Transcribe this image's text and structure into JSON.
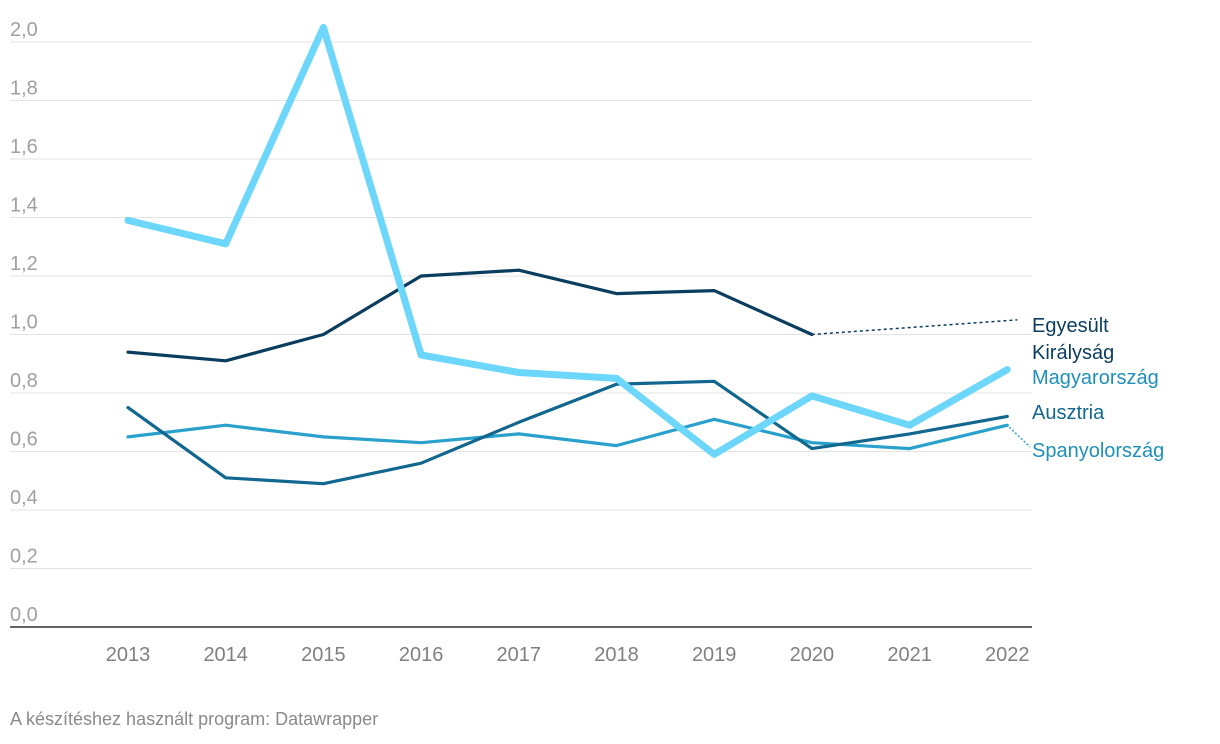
{
  "chart_data": {
    "type": "line",
    "ylim": [
      0,
      2.0
    ],
    "y_ticks": [
      "0,0",
      "0,2",
      "0,4",
      "0,6",
      "0,8",
      "1,0",
      "1,2",
      "1,4",
      "1,6",
      "1,8",
      "2,0"
    ],
    "y_tick_values": [
      0,
      0.2,
      0.4,
      0.6,
      0.8,
      1.0,
      1.2,
      1.4,
      1.6,
      1.8,
      2.0
    ],
    "x": [
      "2013",
      "2014",
      "2015",
      "2016",
      "2017",
      "2018",
      "2019",
      "2020",
      "2021",
      "2022"
    ],
    "grid": true,
    "legend": "direct labels at right",
    "series": [
      {
        "name": "Magyarország",
        "color": "#6dd6fb",
        "values": [
          1.39,
          1.31,
          2.05,
          0.93,
          0.87,
          0.85,
          0.59,
          0.79,
          0.69,
          0.88
        ]
      },
      {
        "name": "Egyesült Királyság",
        "color": "#0a3d5e",
        "values": [
          0.94,
          0.91,
          1.0,
          1.2,
          1.22,
          1.14,
          1.15,
          1.0,
          null,
          null
        ],
        "projected_to": 1.05
      },
      {
        "name": "Ausztria",
        "color": "#12678e",
        "values": [
          0.75,
          0.51,
          0.49,
          0.56,
          0.7,
          0.83,
          0.84,
          0.61,
          0.66,
          0.72
        ]
      },
      {
        "name": "Spanyolország",
        "color": "#29a1cc",
        "values": [
          0.65,
          0.69,
          0.65,
          0.63,
          0.66,
          0.62,
          0.71,
          0.63,
          0.61,
          0.69
        ]
      }
    ]
  },
  "labels": {
    "uk_line1": "Egyesült",
    "uk_line2": "Királyság",
    "hu": "Magyarország",
    "at": "Ausztria",
    "es": "Spanyolország"
  },
  "footer": "A készítéshez használt program: Datawrapper"
}
